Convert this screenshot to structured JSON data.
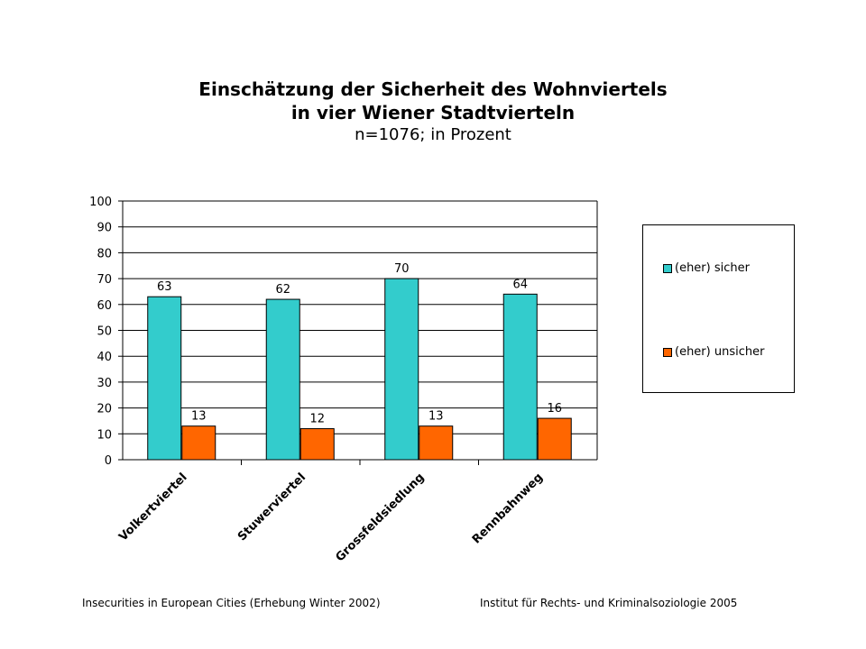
{
  "header": {
    "title_line1": "Einschätzung der Sicherheit des Wohnviertels",
    "title_line2": "in vier Wiener Stadtvierteln",
    "subtitle": "n=1076; in Prozent"
  },
  "colors": {
    "sicher": "#33CCCC",
    "unsicher": "#FF6600"
  },
  "chart_data": {
    "type": "bar",
    "categories": [
      "Volkertviertel",
      "Stuwerviertel",
      "Grossfeldsiedlung",
      "Rennbahnweg"
    ],
    "series": [
      {
        "name": "(eher) sicher",
        "values": [
          63,
          62,
          70,
          64
        ]
      },
      {
        "name": "(eher) unsicher",
        "values": [
          13,
          12,
          13,
          16
        ]
      }
    ],
    "ylim": [
      0,
      100
    ],
    "yticks": [
      0,
      10,
      20,
      30,
      40,
      50,
      60,
      70,
      80,
      90,
      100
    ],
    "grid": true,
    "legend_position": "right"
  },
  "footer": {
    "left": "Insecurities in European Cities (Erhebung Winter 2002)",
    "right": "Institut für Rechts- und Kriminalsoziologie  2005"
  }
}
